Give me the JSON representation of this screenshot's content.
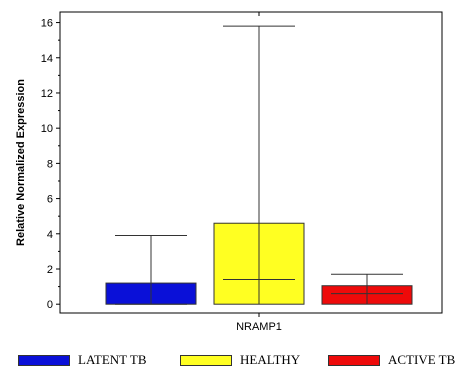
{
  "chart_data": {
    "type": "box",
    "title": "",
    "ylabel": "Relative Normalized Expression",
    "xlabel": "",
    "category": "NRAMP1",
    "ylim": [
      -0.5,
      16.6
    ],
    "yticks": [
      0,
      2,
      4,
      6,
      8,
      10,
      12,
      14,
      16
    ],
    "series": [
      {
        "name": "LATENT TB",
        "color": "#0a10d8",
        "q1": 0.0,
        "q3": 1.2,
        "median": 0.0,
        "whisker_low": 0.0,
        "whisker_high": 3.9
      },
      {
        "name": "HEALTHY",
        "color": "#ffff22",
        "q1": 0.0,
        "q3": 4.6,
        "median": 1.4,
        "whisker_low": 0.0,
        "whisker_high": 15.8
      },
      {
        "name": "ACTIVE TB",
        "color": "#ee0a0a",
        "q1": 0.0,
        "q3": 1.05,
        "median": 0.6,
        "whisker_low": 0.0,
        "whisker_high": 1.7
      }
    ],
    "grid": false,
    "legend_position": "bottom"
  }
}
